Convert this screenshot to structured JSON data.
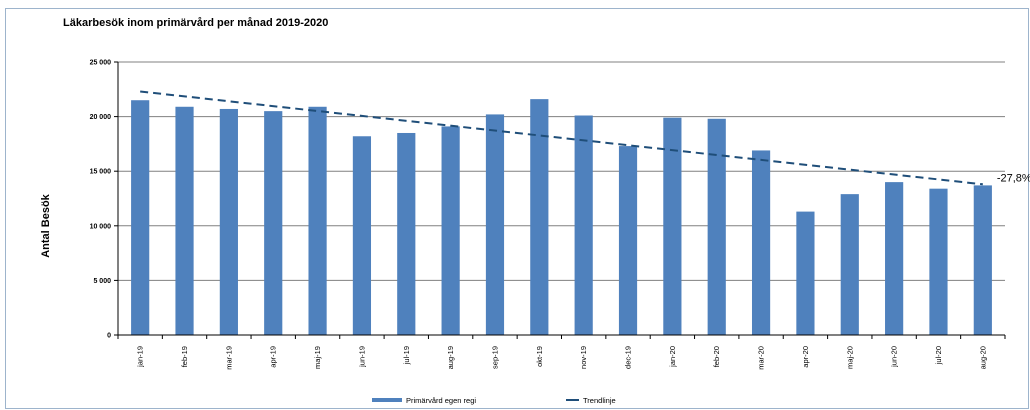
{
  "chart_data": {
    "type": "bar",
    "title": "Läkarbesök inom primärvård per månad 2019-2020",
    "xlabel": "",
    "ylabel": "Antal Besök",
    "ylim": [
      0,
      25000
    ],
    "yticks": [
      0,
      5000,
      10000,
      15000,
      20000,
      25000
    ],
    "ytick_labels": [
      "0",
      "5 000",
      "10 000",
      "15 000",
      "20 000",
      "25 000"
    ],
    "categories": [
      "jan-19",
      "feb-19",
      "mar-19",
      "apr-19",
      "maj-19",
      "jun-19",
      "jul-19",
      "aug-19",
      "sep-19",
      "okt-19",
      "nov-19",
      "dec-19",
      "jan-20",
      "feb-20",
      "mar-20",
      "apr-20",
      "maj-20",
      "jun-20",
      "jul-20",
      "aug-20"
    ],
    "series": [
      {
        "name": "Primärvård egen regi",
        "color": "#4f81bd",
        "values": [
          21500,
          20900,
          20700,
          20500,
          20900,
          18200,
          18500,
          19100,
          20200,
          21600,
          20100,
          17300,
          19900,
          19800,
          16900,
          11300,
          12900,
          14000,
          13400,
          13700
        ]
      }
    ],
    "trendline": {
      "name": "Trendlinje",
      "color": "#1f4e79",
      "start": 22300,
      "end": 13800,
      "label": "-27,8%"
    },
    "grid": true,
    "legend_position": "bottom"
  }
}
